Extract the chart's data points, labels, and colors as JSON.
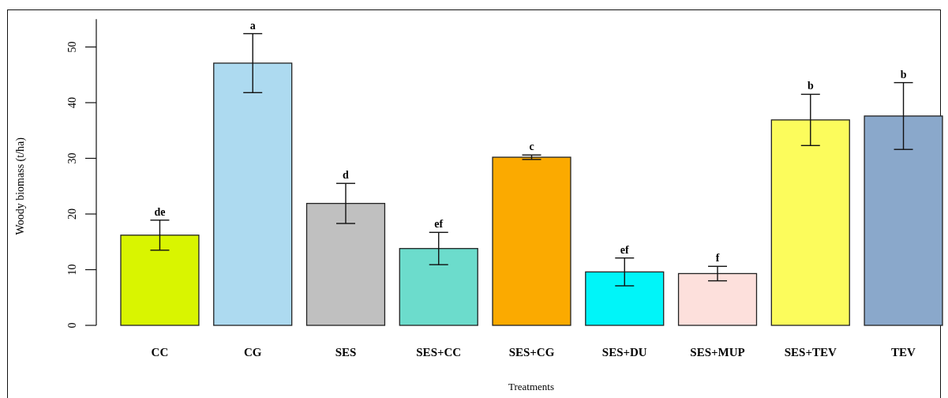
{
  "chart_data": {
    "type": "bar",
    "xlabel": "Treatments",
    "ylabel": "Woody biomass (t/ha)",
    "categories": [
      "CC",
      "CG",
      "SES",
      "SES+CC",
      "SES+CG",
      "SES+DU",
      "SES+MUP",
      "SES+TEV",
      "TEV"
    ],
    "values": [
      16.2,
      47.1,
      21.9,
      13.8,
      30.2,
      9.6,
      9.3,
      36.9,
      37.6
    ],
    "errors": [
      2.7,
      5.3,
      3.6,
      2.9,
      0.4,
      2.5,
      1.3,
      4.6,
      6.0
    ],
    "colors": [
      "#d9f500",
      "#addaf0",
      "#c0c0c0",
      "#6cdccc",
      "#fbaa00",
      "#00f5f9",
      "#fde0dc",
      "#fcfc5c",
      "#8aa8cb"
    ],
    "ylim": [
      0,
      55
    ],
    "yticks": [
      0,
      10,
      20,
      30,
      40,
      50
    ],
    "grid": false,
    "annotations": [
      {
        "text": "de",
        "x": "CC",
        "y": 18.9
      },
      {
        "text": "a",
        "x": "CG",
        "y": 52.4
      },
      {
        "text": "d",
        "x": "SES",
        "y": 25.5
      },
      {
        "text": "ef",
        "x": "SES+CC",
        "y": 16.7
      },
      {
        "text": "c",
        "x": "SES+CG",
        "y": 30.6
      },
      {
        "text": "ef",
        "x": "SES+DU",
        "y": 12.1
      },
      {
        "text": "f",
        "x": "SES+MUP",
        "y": 10.6
      },
      {
        "text": "b",
        "x": "SES+TEV",
        "y": 41.5
      },
      {
        "text": "b",
        "x": "TEV",
        "y": 43.6
      }
    ]
  }
}
